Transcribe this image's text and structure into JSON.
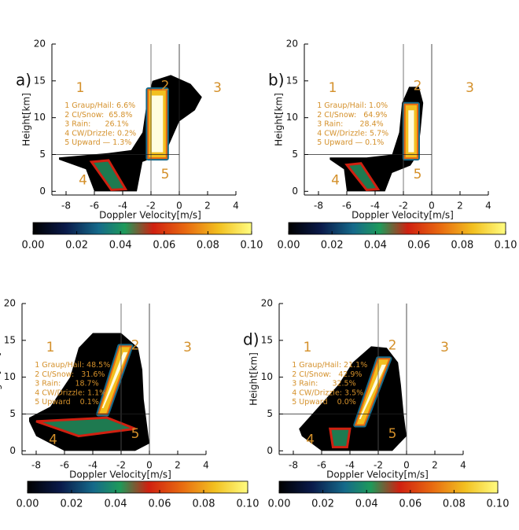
{
  "chart_data": [
    {
      "type": "density",
      "label": "a)",
      "xlabel": "Doppler Velocity[m/s]",
      "ylabel": "Height[km]",
      "xlim": [
        -9,
        4
      ],
      "ylim": [
        -0.5,
        20
      ],
      "xticks": [
        -8,
        -6,
        -4,
        -2,
        0,
        2,
        4
      ],
      "yticks": [
        0,
        5,
        10,
        15,
        20
      ],
      "regions": [
        "1",
        "2",
        "3",
        "4",
        "5"
      ],
      "legend": [
        "1 Graup/Hail: 6.6%",
        "2 CI/Snow:  65.8%",
        "3 Rain:      26.1%",
        "4 CW/Drizzle: 0.2%",
        "5 Upward — 1.3%"
      ],
      "colorbar": {
        "lim": [
          0,
          0.1
        ],
        "ticks": [
          {
            "value": 0,
            "label": "0.00"
          },
          {
            "value": 0.02,
            "label": "0.02"
          },
          {
            "value": 0.04,
            "label": "0.04"
          },
          {
            "value": 0.06,
            "label": "0.06"
          },
          {
            "value": 0.08,
            "label": "0.08"
          },
          {
            "value": 0.1,
            "label": "0.10"
          }
        ]
      }
    },
    {
      "type": "density",
      "label": "b)",
      "xlabel": "Doppler Velocity[m/s]",
      "ylabel": "Height[km]",
      "xlim": [
        -9,
        4
      ],
      "ylim": [
        -0.5,
        20
      ],
      "xticks": [
        -8,
        -6,
        -4,
        -2,
        0,
        2,
        4
      ],
      "yticks": [
        0,
        5,
        10,
        15,
        20
      ],
      "regions": [
        "1",
        "2",
        "3",
        "4",
        "5"
      ],
      "legend": [
        "1 Graup/Hail: 1.0%",
        "2 CI/Snow:   64.9%",
        "3 Rain:       28.4%",
        "4 CW/Drizzle: 5.7%",
        "5 Upward — 0.1%"
      ],
      "colorbar": {
        "lim": [
          0,
          0.1
        ],
        "ticks": [
          {
            "value": 0,
            "label": "0.00"
          },
          {
            "value": 0.02,
            "label": "0.02"
          },
          {
            "value": 0.04,
            "label": "0.04"
          },
          {
            "value": 0.06,
            "label": "0.06"
          },
          {
            "value": 0.08,
            "label": "0.08"
          },
          {
            "value": 0.1,
            "label": "0.10"
          }
        ]
      }
    },
    {
      "type": "density",
      "label": "c)",
      "xlabel": "Doppler Velocity[m/s]",
      "ylabel": "Height[km]",
      "xlim": [
        -9,
        4
      ],
      "ylim": [
        -0.5,
        20
      ],
      "xticks": [
        -8,
        -6,
        -4,
        -2,
        0,
        2,
        4
      ],
      "yticks": [
        0,
        5,
        10,
        15,
        20
      ],
      "regions": [
        "1",
        "2",
        "3",
        "4",
        "5"
      ],
      "legend": [
        "1 Graup/Hail: 48.5%",
        "2 CI/Snow:   31.6%",
        "3 Rain:      18.7%",
        "4 CW/Drizzle: 1.1%",
        "5 Upward    0.1%"
      ],
      "colorbar": {
        "lim": [
          0,
          0.1
        ],
        "ticks": [
          {
            "value": 0,
            "label": "0.00"
          },
          {
            "value": 0.02,
            "label": "0.02"
          },
          {
            "value": 0.04,
            "label": "0.04"
          },
          {
            "value": 0.06,
            "label": "0.06"
          },
          {
            "value": 0.08,
            "label": "0.08"
          },
          {
            "value": 0.1,
            "label": "0.10"
          }
        ]
      }
    },
    {
      "type": "density",
      "label": "d)",
      "xlabel": "Doppler Velocity[m/s]",
      "ylabel": "Height[km]",
      "xlim": [
        -9,
        4
      ],
      "ylim": [
        -0.5,
        20
      ],
      "xticks": [
        -8,
        -6,
        -4,
        -2,
        0,
        2,
        4
      ],
      "yticks": [
        0,
        5,
        10,
        15,
        20
      ],
      "regions": [
        "1",
        "2",
        "3",
        "4",
        "5"
      ],
      "legend": [
        "1 Graup/Hail: 21.1%",
        "2 CI/Snow:   42.9%",
        "3 Rain:      32.5%",
        "4 CW/Drizzle: 3.5%",
        "5 Upward    0.0%"
      ],
      "colorbar": {
        "lim": [
          0,
          0.1
        ],
        "ticks": [
          {
            "value": 0,
            "label": "0.00"
          },
          {
            "value": 0.02,
            "label": "0.02"
          },
          {
            "value": 0.04,
            "label": "0.04"
          },
          {
            "value": 0.06,
            "label": "0.06"
          },
          {
            "value": 0.08,
            "label": "0.08"
          },
          {
            "value": 0.1,
            "label": "0.10"
          }
        ]
      }
    }
  ]
}
